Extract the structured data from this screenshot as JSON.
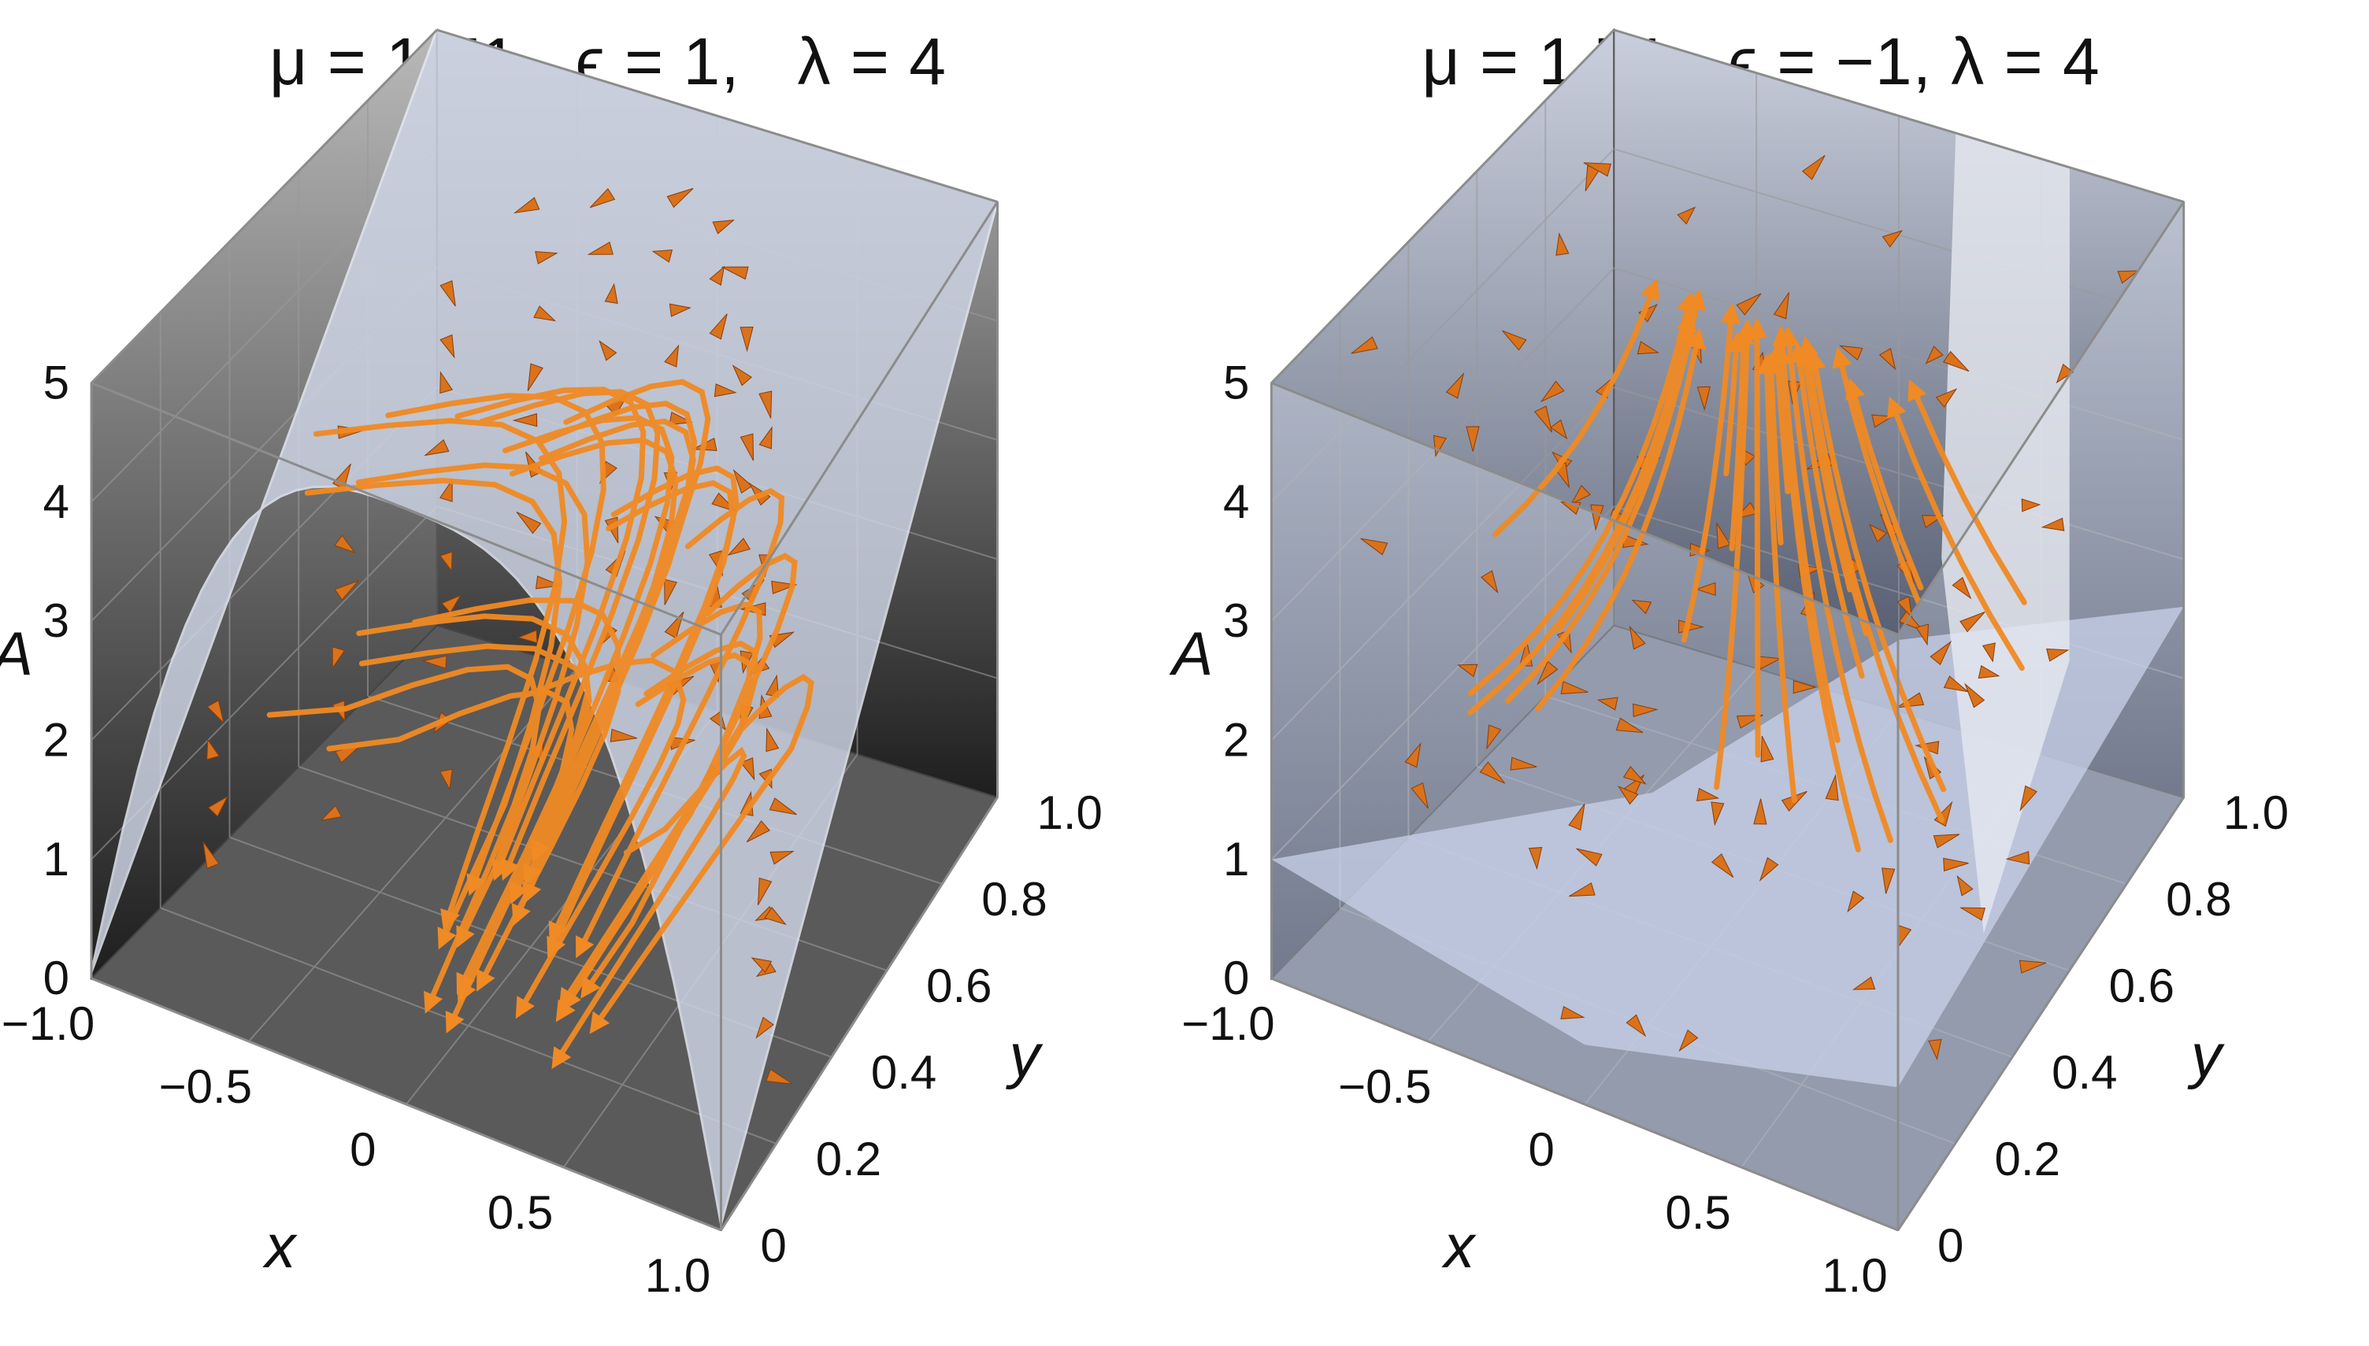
{
  "chart_data": [
    {
      "type": "3d-surface-vector-field",
      "title": "μ = 1.71,  ϵ = 1,   λ = 4",
      "params": {
        "mu": 1.71,
        "epsilon": 1,
        "lambda": 4
      },
      "xlabel": "x",
      "ylabel": "y",
      "zlabel": "A",
      "xlim": [
        -1.0,
        1.0
      ],
      "ylim": [
        0,
        1.0
      ],
      "zlim": [
        0,
        5
      ],
      "x_ticks": [
        "−1.0",
        "−0.5",
        "0",
        "0.5",
        "1.0"
      ],
      "y_ticks": [
        "0",
        "0.2",
        "0.4",
        "0.6",
        "0.8",
        "1.0"
      ],
      "z_ticks": [
        "0",
        "1",
        "2",
        "3",
        "4",
        "5"
      ],
      "surface_color": "#cfd6e6",
      "arrow_color": "#f08a24",
      "box_color": "#4a4a4a"
    },
    {
      "type": "3d-surface-vector-field",
      "title": "μ = 1.71,  ϵ = −1, λ = 4",
      "params": {
        "mu": 1.71,
        "epsilon": -1,
        "lambda": 4
      },
      "xlabel": "x",
      "ylabel": "y",
      "zlabel": "A",
      "xlim": [
        -1.0,
        1.0
      ],
      "ylim": [
        0,
        1.0
      ],
      "zlim": [
        0,
        5
      ],
      "x_ticks": [
        "−1.0",
        "−0.5",
        "0",
        "0.5",
        "1.0"
      ],
      "y_ticks": [
        "0",
        "0.2",
        "0.4",
        "0.6",
        "0.8",
        "1.0"
      ],
      "z_ticks": [
        "0",
        "1",
        "2",
        "3",
        "4",
        "5"
      ],
      "surface_color": "#c8d2ea",
      "arrow_color": "#f08a24",
      "box_color": "#5b6478"
    }
  ]
}
